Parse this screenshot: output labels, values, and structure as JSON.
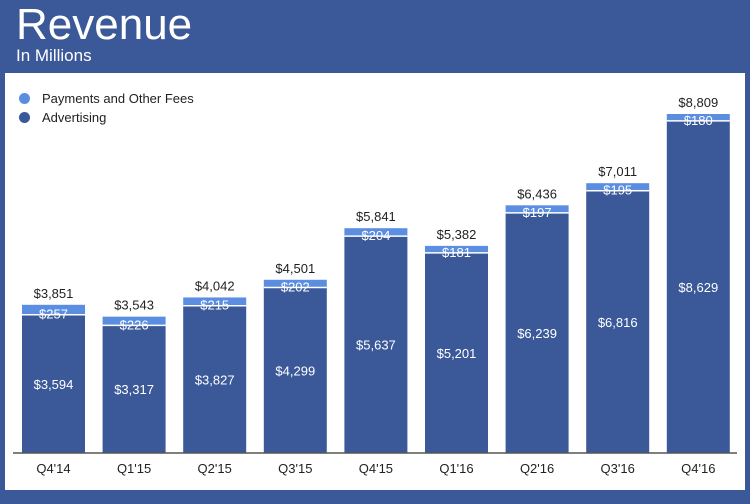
{
  "chart_data": {
    "type": "bar",
    "stacked": true,
    "title": "Revenue",
    "subtitle": "In Millions",
    "categories": [
      "Q4'14",
      "Q1'15",
      "Q2'15",
      "Q3'15",
      "Q4'15",
      "Q1'16",
      "Q2'16",
      "Q3'16",
      "Q4'16"
    ],
    "series": [
      {
        "name": "Advertising",
        "color": "#3b5998",
        "values": [
          3594,
          3317,
          3827,
          4299,
          5637,
          5201,
          6239,
          6816,
          8629
        ],
        "labels": [
          "$3,594",
          "$3,317",
          "$3,827",
          "$4,299",
          "$5,637",
          "$5,201",
          "$6,239",
          "$6,816",
          "$8,629"
        ]
      },
      {
        "name": "Payments and Other Fees",
        "color": "#5b8ee0",
        "values": [
          257,
          226,
          215,
          202,
          204,
          181,
          197,
          195,
          180
        ],
        "labels": [
          "$257",
          "$226",
          "$215",
          "$202",
          "$204",
          "$181",
          "$197",
          "$195",
          "$180"
        ]
      }
    ],
    "totals": [
      "$3,851",
      "$3,543",
      "$4,042",
      "$4,501",
      "$5,841",
      "$5,382",
      "$6,436",
      "$7,011",
      "$8,809"
    ],
    "ylim": [
      0,
      8809
    ],
    "legend": "top-left",
    "grid": false
  }
}
